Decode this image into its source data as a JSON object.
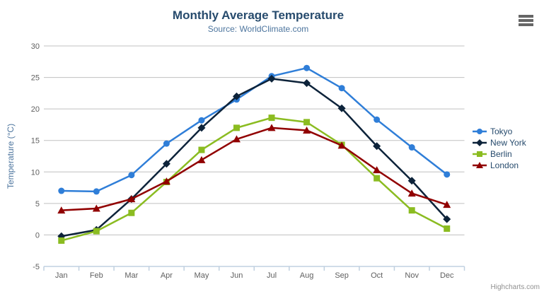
{
  "chart_data": {
    "type": "line",
    "title": "Monthly Average Temperature",
    "subtitle": "Source: WorldClimate.com",
    "categories": [
      "Jan",
      "Feb",
      "Mar",
      "Apr",
      "May",
      "Jun",
      "Jul",
      "Aug",
      "Sep",
      "Oct",
      "Nov",
      "Dec"
    ],
    "series": [
      {
        "name": "Tokyo",
        "color": "#2f7ed8",
        "symbol": "circle",
        "values": [
          7.0,
          6.9,
          9.5,
          14.5,
          18.2,
          21.5,
          25.2,
          26.5,
          23.3,
          18.3,
          13.9,
          9.6
        ]
      },
      {
        "name": "New York",
        "color": "#0d233a",
        "symbol": "diamond",
        "values": [
          -0.2,
          0.8,
          5.7,
          11.3,
          17.0,
          22.0,
          24.8,
          24.1,
          20.1,
          14.1,
          8.6,
          2.5
        ]
      },
      {
        "name": "Berlin",
        "color": "#8bbc21",
        "symbol": "square",
        "values": [
          -0.9,
          0.6,
          3.5,
          8.4,
          13.5,
          17.0,
          18.6,
          17.9,
          14.3,
          9.0,
          3.9,
          1.0
        ]
      },
      {
        "name": "London",
        "color": "#910000",
        "symbol": "triangle",
        "values": [
          3.9,
          4.2,
          5.7,
          8.5,
          11.9,
          15.2,
          17.0,
          16.6,
          14.2,
          10.3,
          6.6,
          4.8
        ]
      }
    ],
    "xlabel": "",
    "ylabel": "Temperature (°C)",
    "ylim": [
      -5,
      30
    ],
    "ytick_step": 5,
    "grid": true,
    "legend_position": "right"
  },
  "credits": {
    "label": "Highcharts.com"
  },
  "colors": {
    "title": "#274b6d",
    "subtitle": "#4d759e",
    "axis_title": "#4d759e",
    "tick_label": "#606060",
    "gridline": "#C0C0C0",
    "axis_line": "#C0D0E0",
    "legend_text": "#274b6d",
    "credits": "#909090",
    "menu_icon": "#666666"
  }
}
